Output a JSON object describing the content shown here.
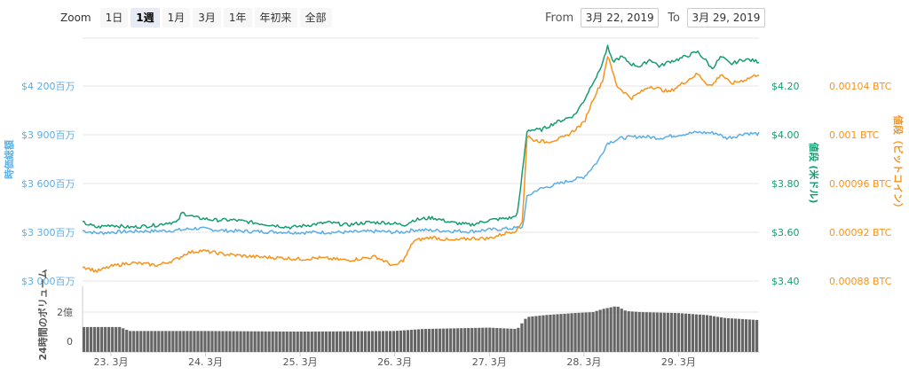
{
  "zoom": {
    "label": "Zoom",
    "buttons": [
      {
        "label": "1日",
        "active": false
      },
      {
        "label": "1週",
        "active": true
      },
      {
        "label": "1月",
        "active": false
      },
      {
        "label": "3月",
        "active": false
      },
      {
        "label": "1年",
        "active": false
      },
      {
        "label": "年初来",
        "active": false
      },
      {
        "label": "全部",
        "active": false
      }
    ]
  },
  "range": {
    "from_label": "From",
    "from_value": "3月 22, 2019",
    "to_label": "To",
    "to_value": "3月 29, 2019"
  },
  "chart_data": {
    "type": "line",
    "colors": {
      "market_cap": "#5baee6",
      "price_usd": "#169b73",
      "price_btc": "#f7931a",
      "volume": "#666666",
      "grid": "#e6e6e6"
    },
    "axes": {
      "left_title": "時価総額",
      "left_ticks": [
        "$4 200百万",
        "$3 900百万",
        "$3 600百万",
        "$3 300百万",
        "$3 000百万"
      ],
      "left_range": [
        3000,
        4200
      ],
      "right1_title": "値段 (米ドル)",
      "right1_ticks": [
        "$4.20",
        "$4.00",
        "$3.80",
        "$3.60",
        "$3.40"
      ],
      "right1_range": [
        3.4,
        4.2
      ],
      "right2_title": "値段（ビットコイン）",
      "right2_ticks": [
        "0.00104 BTC",
        "0.001 BTC",
        "0.00096 BTC",
        "0.00092 BTC",
        "0.00088 BTC"
      ],
      "right2_range": [
        0.00088,
        0.00104
      ],
      "volume_title": "24時間のボリューム",
      "volume_ticks": [
        "2億",
        "0"
      ],
      "volume_range": [
        0,
        2
      ],
      "x_ticks": [
        "23. 3月",
        "24. 3月",
        "25. 3月",
        "26. 3月",
        "27. 3月",
        "28. 3月",
        "29. 3月"
      ]
    },
    "x_domain": [
      22.7,
      29.85
    ],
    "series": [
      {
        "name": "時価総額",
        "key": "market_cap",
        "axis": "left",
        "points": [
          [
            22.7,
            3310
          ],
          [
            22.85,
            3295
          ],
          [
            23.0,
            3300
          ],
          [
            23.2,
            3305
          ],
          [
            23.5,
            3308
          ],
          [
            23.7,
            3312
          ],
          [
            23.9,
            3325
          ],
          [
            24.0,
            3320
          ],
          [
            24.2,
            3310
          ],
          [
            24.5,
            3305
          ],
          [
            24.8,
            3302
          ],
          [
            25.0,
            3298
          ],
          [
            25.2,
            3300
          ],
          [
            25.5,
            3300
          ],
          [
            25.8,
            3306
          ],
          [
            26.0,
            3300
          ],
          [
            26.1,
            3302
          ],
          [
            26.2,
            3315
          ],
          [
            26.5,
            3310
          ],
          [
            26.8,
            3305
          ],
          [
            27.0,
            3315
          ],
          [
            27.25,
            3325
          ],
          [
            27.35,
            3330
          ],
          [
            27.4,
            3520
          ],
          [
            27.5,
            3560
          ],
          [
            27.8,
            3610
          ],
          [
            28.0,
            3640
          ],
          [
            28.15,
            3740
          ],
          [
            28.25,
            3850
          ],
          [
            28.4,
            3880
          ],
          [
            28.6,
            3890
          ],
          [
            28.8,
            3880
          ],
          [
            29.0,
            3900
          ],
          [
            29.2,
            3915
          ],
          [
            29.4,
            3910
          ],
          [
            29.5,
            3880
          ],
          [
            29.6,
            3890
          ],
          [
            29.7,
            3910
          ],
          [
            29.85,
            3905
          ]
        ]
      },
      {
        "name": "値段 (米ドル)",
        "key": "price_usd",
        "axis": "right1",
        "points": [
          [
            22.7,
            3.64
          ],
          [
            22.85,
            3.62
          ],
          [
            23.0,
            3.63
          ],
          [
            23.2,
            3.62
          ],
          [
            23.5,
            3.63
          ],
          [
            23.6,
            3.64
          ],
          [
            23.7,
            3.64
          ],
          [
            23.75,
            3.68
          ],
          [
            23.9,
            3.66
          ],
          [
            24.1,
            3.65
          ],
          [
            24.3,
            3.65
          ],
          [
            24.5,
            3.64
          ],
          [
            24.7,
            3.63
          ],
          [
            24.9,
            3.62
          ],
          [
            25.1,
            3.63
          ],
          [
            25.3,
            3.64
          ],
          [
            25.5,
            3.63
          ],
          [
            25.7,
            3.64
          ],
          [
            25.9,
            3.64
          ],
          [
            26.1,
            3.63
          ],
          [
            26.2,
            3.65
          ],
          [
            26.4,
            3.66
          ],
          [
            26.6,
            3.64
          ],
          [
            26.8,
            3.63
          ],
          [
            27.0,
            3.65
          ],
          [
            27.25,
            3.66
          ],
          [
            27.3,
            3.68
          ],
          [
            27.4,
            4.02
          ],
          [
            27.55,
            4.02
          ],
          [
            27.7,
            4.05
          ],
          [
            27.9,
            4.08
          ],
          [
            28.0,
            4.14
          ],
          [
            28.1,
            4.22
          ],
          [
            28.15,
            4.25
          ],
          [
            28.2,
            4.3
          ],
          [
            28.25,
            4.36
          ],
          [
            28.3,
            4.3
          ],
          [
            28.4,
            4.32
          ],
          [
            28.5,
            4.29
          ],
          [
            28.6,
            4.28
          ],
          [
            28.7,
            4.31
          ],
          [
            28.8,
            4.28
          ],
          [
            28.9,
            4.3
          ],
          [
            29.0,
            4.31
          ],
          [
            29.2,
            4.34
          ],
          [
            29.3,
            4.3
          ],
          [
            29.35,
            4.27
          ],
          [
            29.45,
            4.32
          ],
          [
            29.55,
            4.29
          ],
          [
            29.7,
            4.31
          ],
          [
            29.85,
            4.3
          ]
        ]
      },
      {
        "name": "値段（ビットコイン）",
        "key": "price_btc",
        "axis": "right2",
        "points": [
          [
            22.7,
            0.000892
          ],
          [
            22.85,
            0.000888
          ],
          [
            23.0,
            0.000892
          ],
          [
            23.2,
            0.000895
          ],
          [
            23.5,
            0.000893
          ],
          [
            23.7,
            0.000898
          ],
          [
            23.8,
            0.000903
          ],
          [
            23.95,
            0.000905
          ],
          [
            24.2,
            0.000902
          ],
          [
            24.5,
            0.0009
          ],
          [
            24.8,
            0.000899
          ],
          [
            25.0,
            0.000898
          ],
          [
            25.2,
            0.000899
          ],
          [
            25.5,
            0.000897
          ],
          [
            25.8,
            0.0009
          ],
          [
            26.0,
            0.000892
          ],
          [
            26.1,
            0.000898
          ],
          [
            26.2,
            0.000913
          ],
          [
            26.4,
            0.000916
          ],
          [
            26.6,
            0.000913
          ],
          [
            26.8,
            0.000915
          ],
          [
            27.0,
            0.000915
          ],
          [
            27.2,
            0.00092
          ],
          [
            27.3,
            0.000922
          ],
          [
            27.35,
            0.00093
          ],
          [
            27.4,
            0.001
          ],
          [
            27.45,
            0.000996
          ],
          [
            27.6,
            0.000994
          ],
          [
            27.8,
            0.000998
          ],
          [
            28.0,
            0.00101
          ],
          [
            28.1,
            0.00103
          ],
          [
            28.2,
            0.001045
          ],
          [
            28.25,
            0.001065
          ],
          [
            28.35,
            0.00104
          ],
          [
            28.5,
            0.00103
          ],
          [
            28.7,
            0.00104
          ],
          [
            28.9,
            0.001035
          ],
          [
            29.1,
            0.001045
          ],
          [
            29.2,
            0.00105
          ],
          [
            29.3,
            0.001042
          ],
          [
            29.35,
            0.00104
          ],
          [
            29.45,
            0.00105
          ],
          [
            29.55,
            0.001042
          ],
          [
            29.7,
            0.001045
          ],
          [
            29.85,
            0.00105
          ]
        ]
      }
    ],
    "volume": {
      "name": "24時間のボリューム",
      "points": [
        [
          22.7,
          1.25
        ],
        [
          23.1,
          1.25
        ],
        [
          23.2,
          1.05
        ],
        [
          24.0,
          1.05
        ],
        [
          25.0,
          1.02
        ],
        [
          26.0,
          1.05
        ],
        [
          26.3,
          1.15
        ],
        [
          27.0,
          1.22
        ],
        [
          27.3,
          1.15
        ],
        [
          27.4,
          1.75
        ],
        [
          27.6,
          1.85
        ],
        [
          27.9,
          1.95
        ],
        [
          28.1,
          2.0
        ],
        [
          28.2,
          2.15
        ],
        [
          28.35,
          2.3
        ],
        [
          28.45,
          2.05
        ],
        [
          28.6,
          2.0
        ],
        [
          29.0,
          1.95
        ],
        [
          29.3,
          1.85
        ],
        [
          29.5,
          1.7
        ],
        [
          29.85,
          1.6
        ]
      ]
    }
  }
}
